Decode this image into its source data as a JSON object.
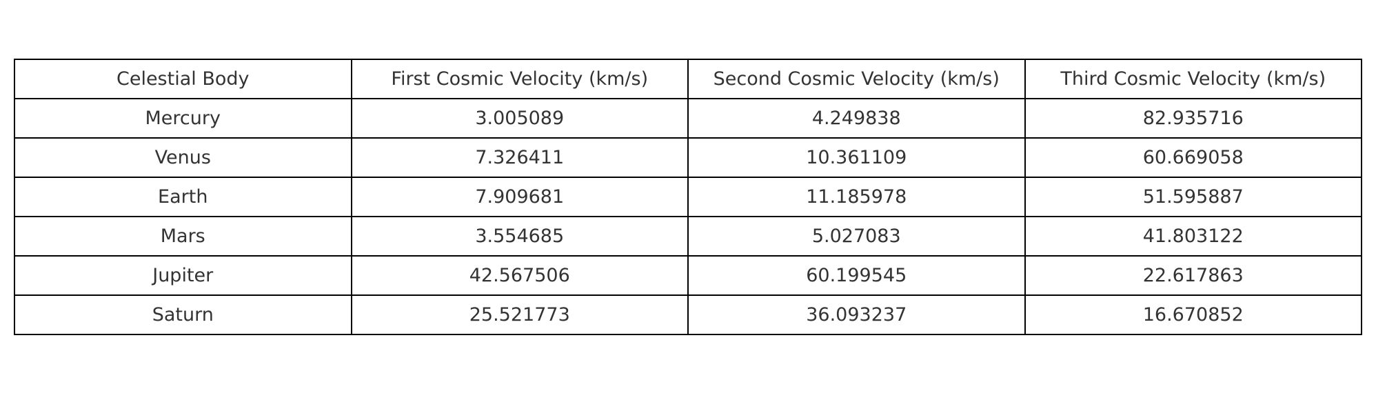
{
  "chart_data": {
    "type": "table",
    "columns": [
      "Celestial Body",
      "First Cosmic Velocity (km/s)",
      "Second Cosmic Velocity (km/s)",
      "Third Cosmic Velocity (km/s)"
    ],
    "rows": [
      [
        "Mercury",
        "3.005089",
        "4.249838",
        "82.935716"
      ],
      [
        "Venus",
        "7.326411",
        "10.361109",
        "60.669058"
      ],
      [
        "Earth",
        "7.909681",
        "11.185978",
        "51.595887"
      ],
      [
        "Mars",
        "3.554685",
        "5.027083",
        "41.803122"
      ],
      [
        "Jupiter",
        "42.567506",
        "60.199545",
        "22.617863"
      ],
      [
        "Saturn",
        "25.521773",
        "36.093237",
        "16.670852"
      ]
    ]
  },
  "colors": {
    "border": "#000000",
    "text": "#333333",
    "background": "#ffffff"
  }
}
